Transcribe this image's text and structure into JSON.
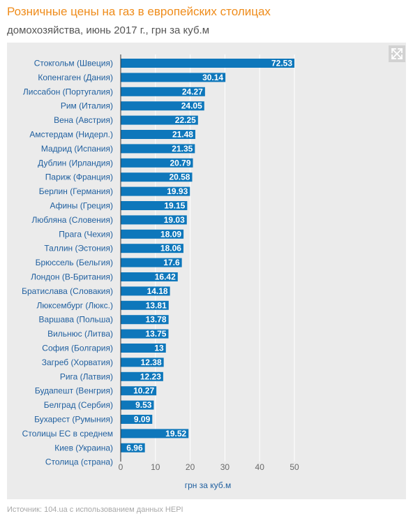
{
  "header": {
    "title": "Розничные цены на газ в европейских столицах",
    "subtitle": "домохозяйства, июнь 2017 г., грн за куб.м"
  },
  "footer": {
    "source": "Источник: 104.ua с использованием данных HEPI"
  },
  "icons": {
    "expand": "expand-arrows-icon"
  },
  "colors": {
    "bar": "#0e77bb",
    "title": "#ef8c1b",
    "label": "#1f5f9f",
    "panel": "#ebebeb"
  },
  "chart_data": {
    "type": "bar",
    "orientation": "horizontal",
    "categories": [
      "Стокгольм (Швеция)",
      "Копенгаген (Дания)",
      "Лиссабон (Португалия)",
      "Рим (Италия)",
      "Вена (Австрия)",
      "Амстердам (Нидерл.)",
      "Мадрид (Испания)",
      "Дублин (Ирландия)",
      "Париж (Франция)",
      "Берлин (Германия)",
      "Афины (Греция)",
      "Любляна (Словения)",
      "Прага (Чехия)",
      "Таллин (Эстония)",
      "Брюссель (Бельгия)",
      "Лондон (В-Британия)",
      "Братислава (Словакия)",
      "Люксембург (Люкс.)",
      "Варшава (Польша)",
      "Вильнюс (Литва)",
      "София (Болгария)",
      "Загреб (Хорватия)",
      "Рига (Латвия)",
      "Будапешт (Венгрия)",
      "Белград (Сербия)",
      "Бухарест (Румыния)",
      "Столицы ЕС в среднем",
      "Киев (Украина)"
    ],
    "values": [
      72.53,
      30.14,
      24.27,
      24.05,
      22.25,
      21.48,
      21.35,
      20.79,
      20.58,
      19.93,
      19.15,
      19.03,
      18.09,
      18.06,
      17.6,
      16.42,
      14.18,
      13.81,
      13.78,
      13.75,
      13,
      12.38,
      12.23,
      10.27,
      9.53,
      9.09,
      19.52,
      6.96
    ],
    "value_labels": [
      "72.53",
      "30.14",
      "24.27",
      "24.05",
      "22.25",
      "21.48",
      "21.35",
      "20.79",
      "20.58",
      "19.93",
      "19.15",
      "19.03",
      "18.09",
      "18.06",
      "17.6",
      "16.42",
      "14.18",
      "13.81",
      "13.78",
      "13.75",
      "13",
      "12.38",
      "12.23",
      "10.27",
      "9.53",
      "9.09",
      "19.52",
      "6.96"
    ],
    "axis_category_title": "Столица (страна)",
    "xlabel": "грн за куб.м",
    "xticks": [
      "0",
      "10",
      "20",
      "30",
      "40",
      "50"
    ],
    "xlim": [
      0,
      50
    ],
    "broken_bar_display_max": 50,
    "grid": true
  }
}
